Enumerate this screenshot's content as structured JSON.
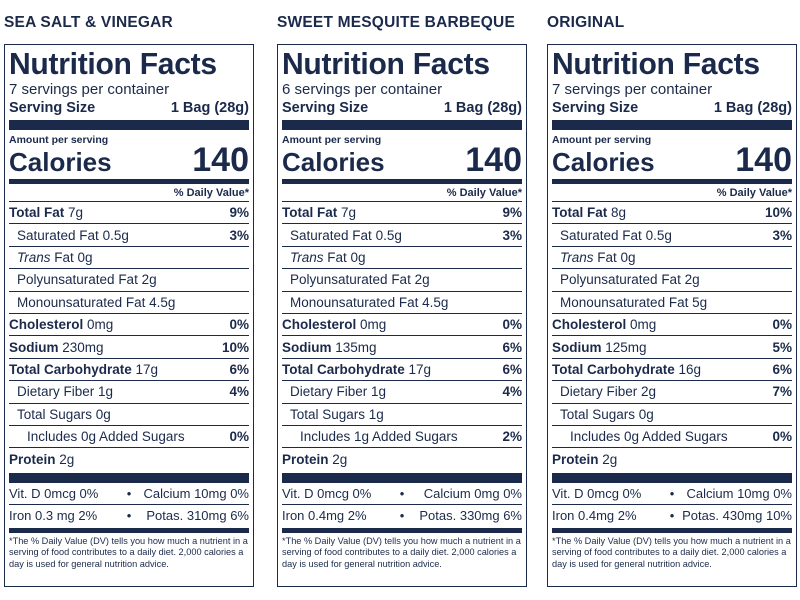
{
  "labels": [
    {
      "flavor": "SEA SALT & VINEGAR",
      "title": "Nutrition Facts",
      "servings": "7 servings per container",
      "serving_size_label": "Serving Size",
      "serving_size_value": "1 Bag (28g)",
      "amount_per_serving": "Amount per serving",
      "calories_label": "Calories",
      "calories_value": "140",
      "dv_header": "% Daily Value*",
      "total_fat": {
        "label": "Total Fat",
        "amount": "7g",
        "pct": "9%"
      },
      "sat_fat": {
        "label": "Saturated Fat",
        "amount": "0.5g",
        "pct": "3%"
      },
      "trans_fat": {
        "label": "Trans",
        "rest": "Fat 0g"
      },
      "poly_fat": "Polyunsaturated Fat 2g",
      "mono_fat": "Monounsaturated Fat 4.5g",
      "cholesterol": {
        "label": "Cholesterol",
        "amount": "0mg",
        "pct": "0%"
      },
      "sodium": {
        "label": "Sodium",
        "amount": "230mg",
        "pct": "10%"
      },
      "carb": {
        "label": "Total Carbohydrate",
        "amount": "17g",
        "pct": "6%"
      },
      "fiber": {
        "label": "Dietary Fiber",
        "amount": "1g",
        "pct": "4%"
      },
      "sugars": "Total Sugars 0g",
      "added_sugars": {
        "label": "Includes 0g Added Sugars",
        "pct": "0%"
      },
      "protein": {
        "label": "Protein",
        "amount": "2g"
      },
      "vitd": "Vit. D 0mcg 0%",
      "calcium": "Calcium 10mg 0%",
      "iron": "Iron 0.3 mg  2%",
      "potas": "Potas. 310mg 6%",
      "footnote": "*The % Daily Value (DV) tells you how much a nutrient in a serving of food contributes to a daily diet. 2,000 calories a day is used for general nutrition advice."
    },
    {
      "flavor": "SWEET MESQUITE BARBEQUE",
      "title": "Nutrition Facts",
      "servings": "6 servings per container",
      "serving_size_label": "Serving Size",
      "serving_size_value": "1 Bag (28g)",
      "amount_per_serving": "Amount per serving",
      "calories_label": "Calories",
      "calories_value": "140",
      "dv_header": "% Daily Value*",
      "total_fat": {
        "label": "Total Fat",
        "amount": "7g",
        "pct": "9%"
      },
      "sat_fat": {
        "label": "Saturated Fat",
        "amount": "0.5g",
        "pct": "3%"
      },
      "trans_fat": {
        "label": "Trans",
        "rest": "Fat 0g"
      },
      "poly_fat": "Polyunsaturated Fat 2g",
      "mono_fat": "Monounsaturated Fat 4.5g",
      "cholesterol": {
        "label": "Cholesterol",
        "amount": "0mg",
        "pct": "0%"
      },
      "sodium": {
        "label": "Sodium",
        "amount": "135mg",
        "pct": "6%"
      },
      "carb": {
        "label": "Total Carbohydrate",
        "amount": "17g",
        "pct": "6%"
      },
      "fiber": {
        "label": "Dietary Fiber",
        "amount": "1g",
        "pct": "4%"
      },
      "sugars": "Total Sugars 1g",
      "added_sugars": {
        "label": "Includes 1g Added Sugars",
        "pct": "2%"
      },
      "protein": {
        "label": "Protein",
        "amount": "2g"
      },
      "vitd": "Vit. D 0mcg 0%",
      "calcium": "Calcium 0mg 0%",
      "iron": "Iron 0.4mg  2%",
      "potas": "Potas. 330mg 6%",
      "footnote": "*The % Daily Value (DV) tells you how much a nutrient in a serving of food contributes to a daily diet. 2,000 calories a day is used for general nutrition advice."
    },
    {
      "flavor": "ORIGINAL",
      "title": "Nutrition Facts",
      "servings": "7 servings per container",
      "serving_size_label": "Serving Size",
      "serving_size_value": "1 Bag (28g)",
      "amount_per_serving": "Amount per serving",
      "calories_label": "Calories",
      "calories_value": "140",
      "dv_header": "% Daily Value*",
      "total_fat": {
        "label": "Total Fat",
        "amount": "8g",
        "pct": "10%"
      },
      "sat_fat": {
        "label": "Saturated Fat",
        "amount": "0.5g",
        "pct": "3%"
      },
      "trans_fat": {
        "label": "Trans",
        "rest": "Fat 0g"
      },
      "poly_fat": "Polyunsaturated Fat 2g",
      "mono_fat": "Monounsaturated Fat 5g",
      "cholesterol": {
        "label": "Cholesterol",
        "amount": "0mg",
        "pct": "0%"
      },
      "sodium": {
        "label": "Sodium",
        "amount": "125mg",
        "pct": "5%"
      },
      "carb": {
        "label": "Total Carbohydrate",
        "amount": "16g",
        "pct": "6%"
      },
      "fiber": {
        "label": "Dietary Fiber",
        "amount": "2g",
        "pct": "7%"
      },
      "sugars": "Total Sugars 0g",
      "added_sugars": {
        "label": "Includes 0g Added Sugars",
        "pct": "0%"
      },
      "protein": {
        "label": "Protein",
        "amount": "2g"
      },
      "vitd": "Vit. D 0mcg 0%",
      "calcium": "Calcium 10mg 0%",
      "iron": "Iron 0.4mg  2%",
      "potas": "Potas. 430mg 10%",
      "footnote": "*The % Daily Value (DV) tells you how much a nutrient in a serving of food contributes to a daily diet. 2,000 calories a day is used for general nutrition advice."
    }
  ],
  "colors": {
    "ink": "#1b2a4a",
    "background": "#ffffff"
  }
}
